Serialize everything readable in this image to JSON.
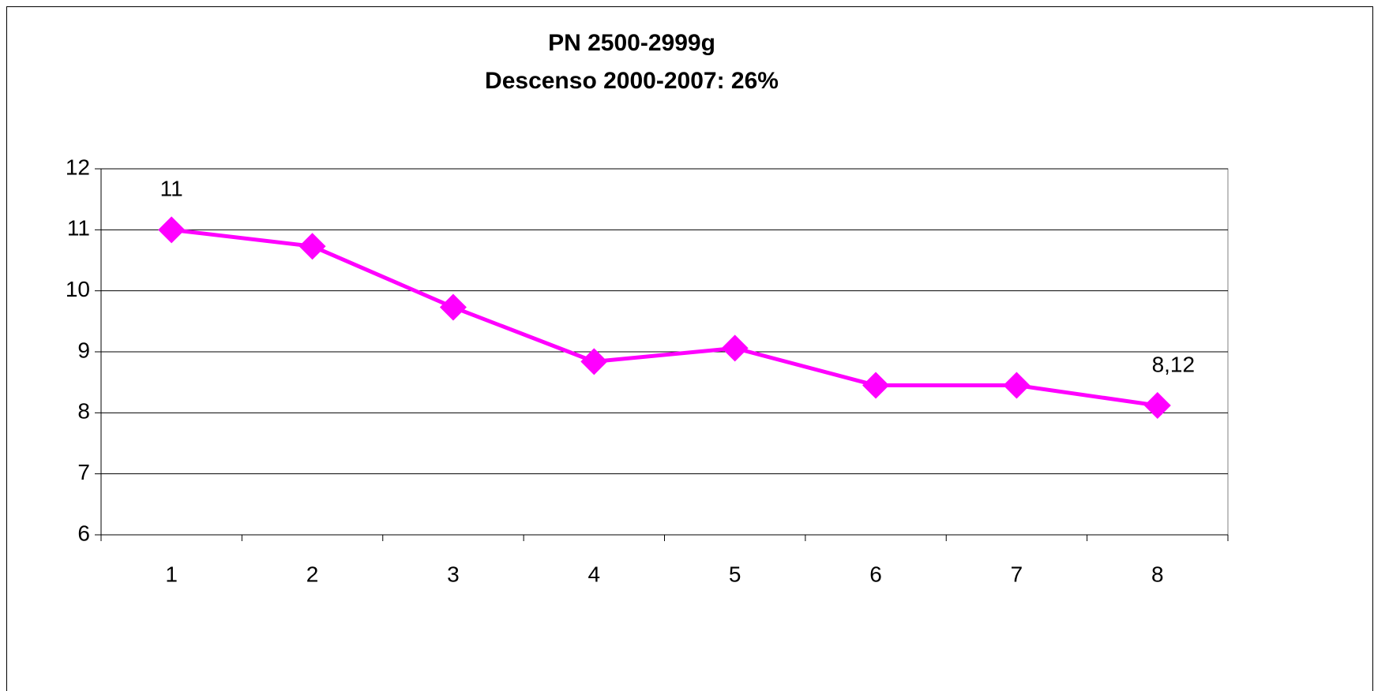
{
  "chart_data": {
    "type": "line",
    "title": "PN 2500-2999g",
    "subtitle": "Descenso 2000-2007: 26%",
    "categories": [
      "1",
      "2",
      "3",
      "4",
      "5",
      "6",
      "7",
      "8"
    ],
    "values": [
      11,
      10.73,
      9.73,
      8.84,
      9.06,
      8.45,
      8.45,
      8.12
    ],
    "value_labels": [
      "11",
      null,
      null,
      null,
      null,
      null,
      null,
      "8,12"
    ],
    "color": "#ff00ff",
    "ylim": [
      6,
      12
    ],
    "yticks": [
      6,
      7,
      8,
      9,
      10,
      11,
      12
    ],
    "grid": true
  }
}
